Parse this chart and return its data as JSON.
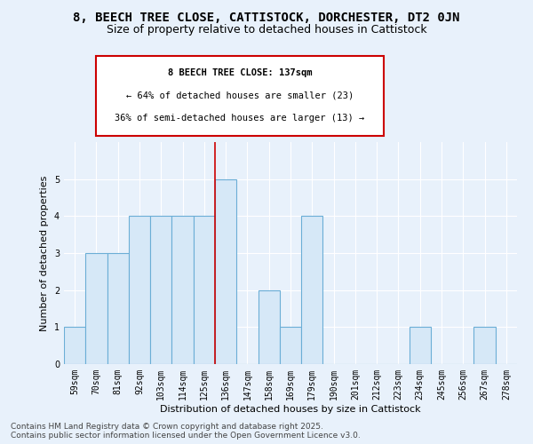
{
  "title_line1": "8, BEECH TREE CLOSE, CATTISTOCK, DORCHESTER, DT2 0JN",
  "title_line2": "Size of property relative to detached houses in Cattistock",
  "xlabel": "Distribution of detached houses by size in Cattistock",
  "ylabel": "Number of detached properties",
  "footnote_line1": "Contains HM Land Registry data © Crown copyright and database right 2025.",
  "footnote_line2": "Contains public sector information licensed under the Open Government Licence v3.0.",
  "annotation_line1": "8 BEECH TREE CLOSE: 137sqm",
  "annotation_line2": "← 64% of detached houses are smaller (23)",
  "annotation_line3": "36% of semi-detached houses are larger (13) →",
  "categories": [
    "59sqm",
    "70sqm",
    "81sqm",
    "92sqm",
    "103sqm",
    "114sqm",
    "125sqm",
    "136sqm",
    "147sqm",
    "158sqm",
    "169sqm",
    "179sqm",
    "190sqm",
    "201sqm",
    "212sqm",
    "223sqm",
    "234sqm",
    "245sqm",
    "256sqm",
    "267sqm",
    "278sqm"
  ],
  "values": [
    1,
    3,
    3,
    4,
    4,
    4,
    4,
    5,
    0,
    2,
    1,
    4,
    0,
    0,
    0,
    0,
    1,
    0,
    0,
    1,
    0
  ],
  "bar_color": "#d6e8f7",
  "bar_edge_color": "#6baed6",
  "highlight_index": 7,
  "ylim": [
    0,
    6
  ],
  "yticks": [
    0,
    1,
    2,
    3,
    4,
    5
  ],
  "bg_color": "#e8f1fb",
  "plot_bg_color": "#e8f1fb",
  "annotation_box_color": "white",
  "annotation_box_edge": "#cc0000",
  "red_line_color": "#cc0000",
  "title_fontsize": 10,
  "subtitle_fontsize": 9,
  "axis_label_fontsize": 8,
  "tick_fontsize": 7,
  "annotation_fontsize": 7.5,
  "footnote_fontsize": 6.5
}
